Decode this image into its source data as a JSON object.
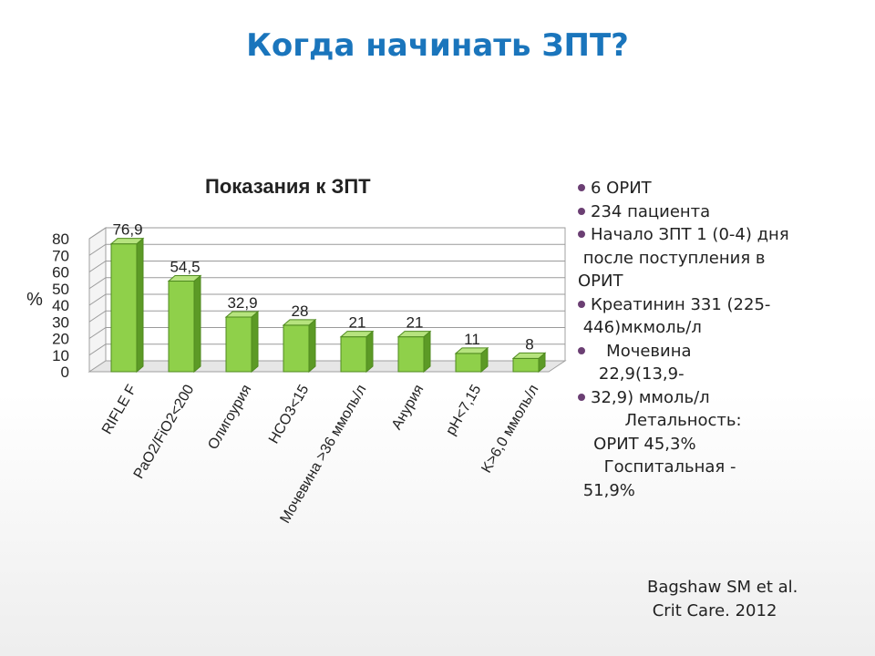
{
  "slide": {
    "title": "Когда начинать ЗПТ?"
  },
  "chart_data": {
    "type": "bar",
    "title": "Показания к ЗПТ",
    "ylabel": "%",
    "xlabel": "",
    "ylim": [
      0,
      80
    ],
    "yticks": [
      "0",
      "10",
      "20",
      "30",
      "40",
      "50",
      "60",
      "70",
      "80"
    ],
    "grid": true,
    "categories": [
      "RIFLE F",
      "PaO2/FiO2<200",
      "Олигоурия",
      "HCO3<15",
      "Мочевина >36 ммоль/л",
      "Анурия",
      "pH<7,15",
      "K>6,0 ммоль/л"
    ],
    "values": [
      76.9,
      54.5,
      32.9,
      28,
      21,
      21,
      11,
      8
    ],
    "data_labels": [
      "76,9",
      "54,5",
      "32,9",
      "28",
      "21",
      "21",
      "11",
      "8"
    ],
    "bar_color": "#8fd04a"
  },
  "notes": [
    {
      "bullet": true,
      "text": "6 ОРИТ"
    },
    {
      "bullet": true,
      "text": "234 пациента"
    },
    {
      "bullet": true,
      "text": "Начало ЗПТ 1 (0-4) дня"
    },
    {
      "bullet": false,
      "text": " после поступления в"
    },
    {
      "bullet": false,
      "text": "ОРИТ"
    },
    {
      "bullet": true,
      "text": "Креатинин 331 (225-"
    },
    {
      "bullet": false,
      "text": " 446)мкмоль/л"
    },
    {
      "bullet": true,
      "text": "   Мочевина"
    },
    {
      "bullet": false,
      "text": "    22,9(13,9-"
    },
    {
      "bullet": true,
      "text": "32,9) ммоль/л"
    },
    {
      "bullet": false,
      "text": "         Летальность:"
    },
    {
      "bullet": false,
      "text": "   ОРИТ 45,3%"
    },
    {
      "bullet": false,
      "text": "     Госпитальная -"
    },
    {
      "bullet": false,
      "text": " 51,9%"
    }
  ],
  "citation": {
    "line1": "Bagshaw SM et al.",
    "line2": " Crit Care. 2012"
  }
}
